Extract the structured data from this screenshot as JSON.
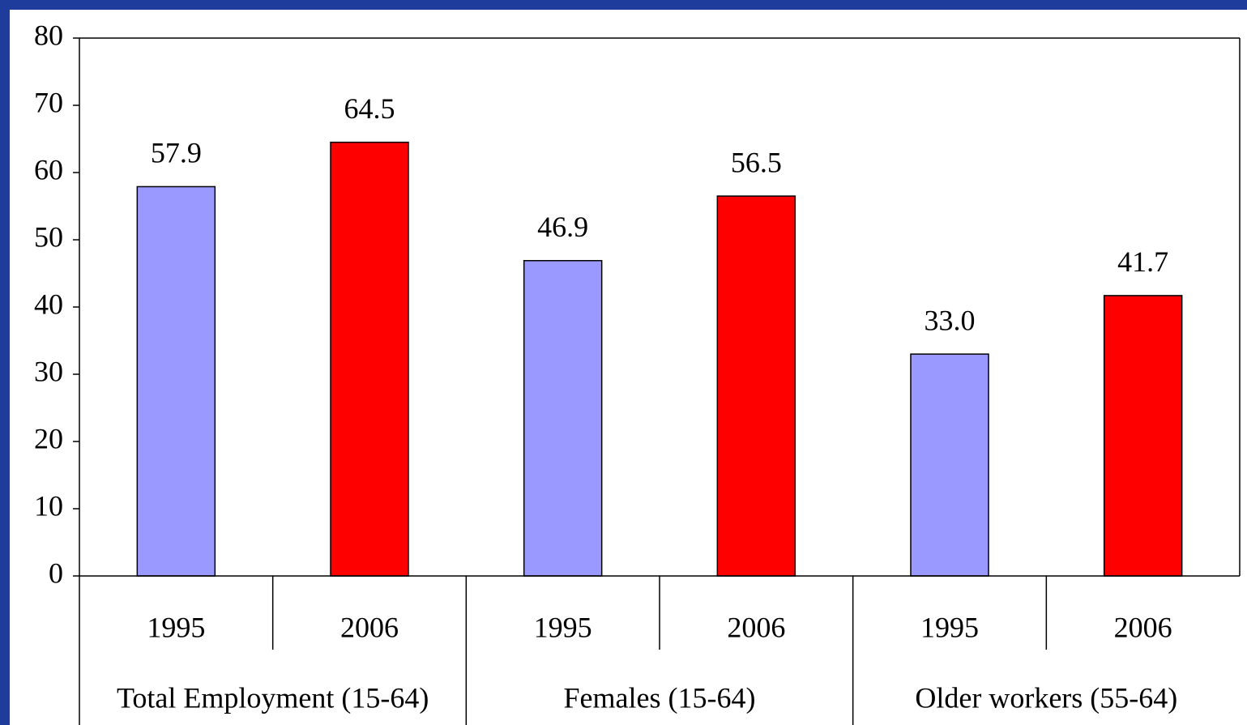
{
  "chart_data": {
    "type": "bar",
    "categories": [
      "1995",
      "2006",
      "1995",
      "2006",
      "1995",
      "2006"
    ],
    "groups": [
      "Total Employment (15-64)",
      "Females (15-64)",
      "Older workers (55-64)"
    ],
    "values": [
      57.9,
      64.5,
      46.9,
      56.5,
      33.0,
      41.7
    ],
    "value_labels": [
      "57.9",
      "64.5",
      "46.9",
      "56.5",
      "33.0",
      "41.7"
    ],
    "colors": [
      "#9999ff",
      "#ff0000",
      "#9999ff",
      "#ff0000",
      "#9999ff",
      "#ff0000"
    ],
    "ylim": [
      0,
      80
    ],
    "yticks": [
      0,
      10,
      20,
      30,
      40,
      50,
      60,
      70,
      80
    ],
    "grid": false
  }
}
